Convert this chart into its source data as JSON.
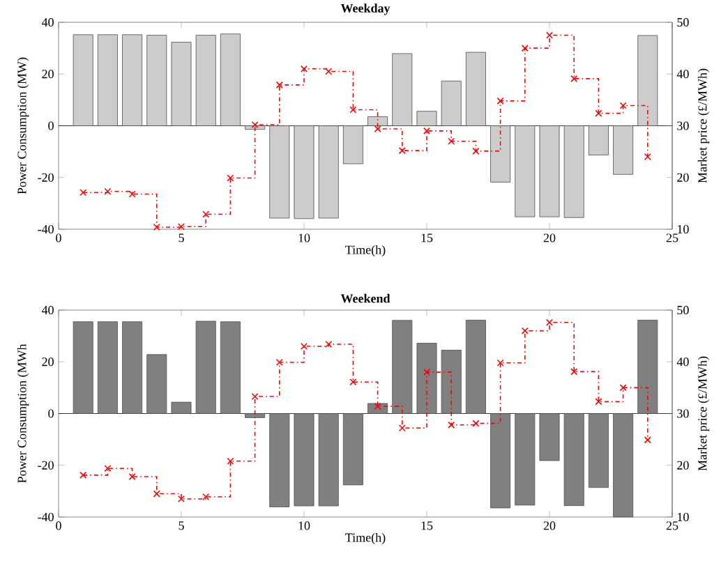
{
  "chart_data": [
    {
      "type": "bar",
      "title": "Weekday",
      "xlabel": "Time(h)",
      "ylabel": "Power Consumption (MW)",
      "y2label": "Market price (£/MWh)",
      "x": [
        1,
        2,
        3,
        4,
        5,
        6,
        7,
        8,
        9,
        10,
        11,
        12,
        13,
        14,
        15,
        16,
        17,
        18,
        19,
        20,
        21,
        22,
        23,
        24
      ],
      "series": [
        {
          "color": "#cccccc",
          "values": [
            35.2,
            35.2,
            35.2,
            35.0,
            32.3,
            35.0,
            35.5,
            -1.4,
            -35.7,
            -35.9,
            -35.7,
            -14.7,
            3.5,
            27.9,
            5.6,
            17.3,
            28.4,
            -21.8,
            -35.2,
            -35.2,
            -35.5,
            -11.3,
            -18.8,
            34.9
          ]
        },
        {
          "type": "step",
          "axis": "y2",
          "color": "#ff0000",
          "marker": "cross",
          "line_style": "dashed",
          "values": [
            17.1,
            17.3,
            16.8,
            10.4,
            10.5,
            12.9,
            19.9,
            30.2,
            37.9,
            41.0,
            40.5,
            33.1,
            29.4,
            25.2,
            29.0,
            27.0,
            25.1,
            34.8,
            45.0,
            47.5,
            39.1,
            32.4,
            33.9,
            24.0
          ]
        }
      ],
      "xlim": [
        0,
        25
      ],
      "xticks": [
        0,
        5,
        10,
        15,
        20,
        25
      ],
      "ylim": [
        -40,
        40
      ],
      "yticks": [
        -40,
        -20,
        0,
        20,
        40
      ],
      "y2lim": [
        10,
        50
      ],
      "y2ticks": [
        10,
        20,
        30,
        40,
        50
      ],
      "ref_lines": [
        {
          "axis": "y",
          "value": 0,
          "color": "#000000"
        }
      ]
    },
    {
      "type": "bar",
      "title": "Weekend",
      "xlabel": "Time(h)",
      "ylabel": "Power Consumption (MWh",
      "y2label": "Market price (£/MWh)",
      "x": [
        1,
        2,
        3,
        4,
        5,
        6,
        7,
        8,
        9,
        10,
        11,
        12,
        13,
        14,
        15,
        16,
        17,
        18,
        19,
        20,
        21,
        22,
        23,
        24
      ],
      "series": [
        {
          "color": "#808080",
          "values": [
            35.5,
            35.5,
            35.5,
            22.8,
            4.4,
            35.7,
            35.5,
            -1.6,
            -36.1,
            -35.7,
            -35.7,
            -27.6,
            3.9,
            36.0,
            27.2,
            24.5,
            36.1,
            -36.5,
            -35.4,
            -18.2,
            -35.6,
            -28.6,
            -40,
            36.1
          ]
        },
        {
          "type": "step",
          "axis": "y2",
          "color": "#ff0000",
          "marker": "cross",
          "line_style": "dashed",
          "values": [
            18.1,
            19.4,
            17.8,
            14.5,
            13.5,
            13.9,
            20.8,
            33.3,
            39.9,
            43.0,
            43.4,
            36.1,
            31.4,
            27.2,
            38.0,
            27.8,
            28.1,
            39.8,
            46.0,
            47.6,
            38.1,
            32.3,
            35.0,
            24.9
          ]
        }
      ],
      "xlim": [
        0,
        25
      ],
      "xticks": [
        0,
        5,
        10,
        15,
        20,
        25
      ],
      "ylim": [
        -40,
        40
      ],
      "yticks": [
        -40,
        -20,
        0,
        20,
        40
      ],
      "y2lim": [
        10,
        50
      ],
      "y2ticks": [
        10,
        20,
        30,
        40,
        50
      ],
      "ref_lines": [
        {
          "axis": "y",
          "value": 0,
          "color": "#000000"
        }
      ]
    }
  ]
}
